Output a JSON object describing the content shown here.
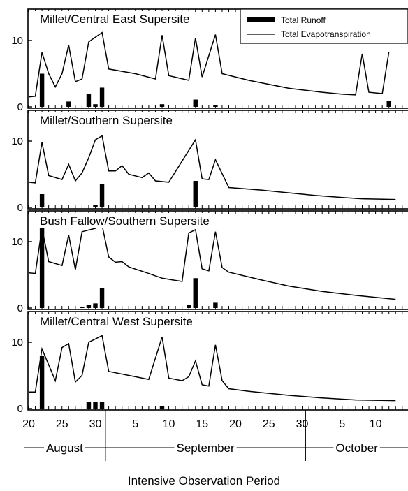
{
  "chart_data": {
    "type": "bar",
    "xlabel": "Intensive Observation Period",
    "x_ticks": [
      "20",
      "25",
      "30",
      "5",
      "10",
      "15",
      "20",
      "25",
      "30",
      "5",
      "10"
    ],
    "months": [
      "August",
      "September",
      "October"
    ],
    "legend": {
      "runoff": "Total Runoff",
      "et": "Total Evapotranspiration"
    },
    "panels": [
      {
        "title": "Millet/Central East Supersite",
        "ylim": [
          0,
          14
        ],
        "yticks": [
          "0",
          "10"
        ],
        "et": [
          [
            20,
            1.5
          ],
          [
            21,
            1.6
          ],
          [
            22,
            8.2
          ],
          [
            23,
            5
          ],
          [
            24,
            3
          ],
          [
            25,
            5
          ],
          [
            26,
            9.3
          ],
          [
            27,
            3.8
          ],
          [
            28,
            4.2
          ],
          [
            29,
            9.8
          ],
          [
            30,
            10.5
          ],
          [
            31,
            11.2
          ],
          [
            32,
            5.7
          ],
          [
            36,
            5
          ],
          [
            39,
            4.2
          ],
          [
            40,
            10.8
          ],
          [
            41,
            4.7
          ],
          [
            44,
            4
          ],
          [
            45,
            10.4
          ],
          [
            46,
            4.5
          ],
          [
            48,
            10.9
          ],
          [
            49,
            5
          ],
          [
            53,
            4
          ],
          [
            59,
            2.8
          ],
          [
            64,
            2.2
          ],
          [
            67,
            1.9
          ],
          [
            69,
            1.8
          ],
          [
            70,
            8
          ],
          [
            71,
            2.2
          ],
          [
            73,
            2
          ],
          [
            74,
            8.3
          ]
        ],
        "runoff": [
          [
            22,
            5
          ],
          [
            26,
            0.8
          ],
          [
            29,
            2
          ],
          [
            30,
            0.4
          ],
          [
            31,
            2.9
          ],
          [
            40,
            0.4
          ],
          [
            45,
            1.1
          ],
          [
            48,
            0.3
          ],
          [
            74,
            0.9
          ]
        ]
      },
      {
        "title": "Millet/Southern Supersite",
        "ylim": [
          0,
          14
        ],
        "yticks": [
          "0",
          "10"
        ],
        "et": [
          [
            20,
            3.8
          ],
          [
            21,
            3.7
          ],
          [
            22,
            9.8
          ],
          [
            23,
            4.8
          ],
          [
            25,
            4.2
          ],
          [
            26,
            6.5
          ],
          [
            27,
            4
          ],
          [
            28,
            5.2
          ],
          [
            29,
            7.5
          ],
          [
            30,
            10.2
          ],
          [
            31,
            10.8
          ],
          [
            32,
            5.5
          ],
          [
            33,
            5.5
          ],
          [
            34,
            6.3
          ],
          [
            35,
            5
          ],
          [
            37,
            4.5
          ],
          [
            38,
            5.2
          ],
          [
            39,
            4
          ],
          [
            41,
            3.8
          ],
          [
            45,
            10.2
          ],
          [
            46,
            4.3
          ],
          [
            47,
            4.2
          ],
          [
            48,
            7.2
          ],
          [
            50,
            3
          ],
          [
            55,
            2.6
          ],
          [
            59,
            2.2
          ],
          [
            63,
            1.8
          ],
          [
            67,
            1.5
          ],
          [
            70,
            1.3
          ],
          [
            75,
            1.2
          ]
        ],
        "runoff": [
          [
            22,
            2
          ],
          [
            30,
            0.4
          ],
          [
            31,
            3.5
          ],
          [
            45,
            4
          ]
        ]
      },
      {
        "title": "Bush Fallow/Southern Supersite",
        "ylim": [
          0,
          14
        ],
        "yticks": [
          "0",
          "10"
        ],
        "et": [
          [
            20,
            5.3
          ],
          [
            21,
            5.2
          ],
          [
            22,
            12
          ],
          [
            23,
            7
          ],
          [
            25,
            6.4
          ],
          [
            26,
            11
          ],
          [
            27,
            5.8
          ],
          [
            28,
            11.5
          ],
          [
            30,
            12
          ],
          [
            31,
            12.5
          ],
          [
            32,
            7.7
          ],
          [
            33,
            6.9
          ],
          [
            34,
            7
          ],
          [
            35,
            6.2
          ],
          [
            38,
            5.2
          ],
          [
            40,
            4.5
          ],
          [
            43,
            4
          ],
          [
            44,
            11.3
          ],
          [
            45,
            11.8
          ],
          [
            46,
            5.9
          ],
          [
            47,
            5.6
          ],
          [
            48,
            11.5
          ],
          [
            49,
            6.1
          ],
          [
            50,
            5.4
          ],
          [
            55,
            4.2
          ],
          [
            59,
            3.3
          ],
          [
            64,
            2.5
          ],
          [
            69,
            1.9
          ],
          [
            75,
            1.3
          ]
        ],
        "runoff": [
          [
            22,
            12
          ],
          [
            28,
            0.2
          ],
          [
            29,
            0.5
          ],
          [
            30,
            0.7
          ],
          [
            31,
            3
          ],
          [
            44,
            0.5
          ],
          [
            45,
            4.5
          ],
          [
            48,
            0.8
          ]
        ]
      },
      {
        "title": "Millet/Central West Supersite",
        "ylim": [
          0,
          14
        ],
        "yticks": [
          "0",
          "10"
        ],
        "et": [
          [
            20,
            2.5
          ],
          [
            21,
            2.5
          ],
          [
            22,
            9
          ],
          [
            24,
            4.2
          ],
          [
            25,
            9.2
          ],
          [
            26,
            9.8
          ],
          [
            27,
            4
          ],
          [
            28,
            5
          ],
          [
            29,
            10
          ],
          [
            30,
            10.5
          ],
          [
            31,
            11
          ],
          [
            32,
            5.6
          ],
          [
            36,
            4.8
          ],
          [
            38,
            4.4
          ],
          [
            40,
            10.8
          ],
          [
            41,
            4.6
          ],
          [
            43,
            4.2
          ],
          [
            44,
            4.8
          ],
          [
            45,
            7.2
          ],
          [
            46,
            3.6
          ],
          [
            47,
            3.4
          ],
          [
            48,
            9.6
          ],
          [
            49,
            4.2
          ],
          [
            50,
            3
          ],
          [
            53,
            2.6
          ],
          [
            59,
            2
          ],
          [
            64,
            1.6
          ],
          [
            69,
            1.3
          ],
          [
            75,
            1.2
          ]
        ],
        "runoff": [
          [
            22,
            8
          ],
          [
            29,
            1
          ],
          [
            30,
            1
          ],
          [
            31,
            1
          ],
          [
            40,
            0.4
          ]
        ]
      }
    ]
  }
}
